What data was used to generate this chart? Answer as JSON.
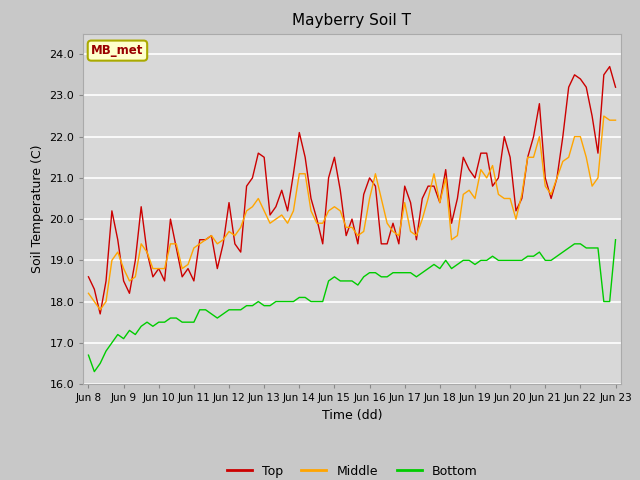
{
  "title": "Mayberry Soil T",
  "xlabel": "Time (dd)",
  "ylabel": "Soil Temperature (C)",
  "ylim": [
    16.0,
    24.5
  ],
  "yticks": [
    16.0,
    17.0,
    18.0,
    19.0,
    20.0,
    21.0,
    22.0,
    23.0,
    24.0
  ],
  "outer_bg": "#c8c8c8",
  "plot_bg_color": "#d8d8d8",
  "line_colors": {
    "Top": "#cc0000",
    "Middle": "#ffa500",
    "Bottom": "#00cc00"
  },
  "legend_label": "MB_met",
  "legend_box_facecolor": "#ffffcc",
  "legend_box_edge": "#aaaa00",
  "legend_text_color": "#990000",
  "x_start_day": 8,
  "x_end_day": 23,
  "x_ticks": [
    8,
    9,
    10,
    11,
    12,
    13,
    14,
    15,
    16,
    17,
    18,
    19,
    20,
    21,
    22,
    23
  ],
  "x_tick_labels": [
    "Jun 8",
    "Jun 9",
    "Jun 10",
    "Jun 11",
    "Jun 12",
    "Jun 13",
    "Jun 14",
    "Jun 15",
    "Jun 16",
    "Jun 17",
    "Jun 18",
    "Jun 19",
    "Jun 20",
    "Jun 21",
    "Jun 22",
    "Jun 23"
  ],
  "top_data": [
    18.6,
    18.3,
    17.7,
    18.5,
    20.2,
    19.5,
    18.5,
    18.2,
    19.0,
    20.3,
    19.2,
    18.6,
    18.8,
    18.5,
    20.0,
    19.3,
    18.6,
    18.8,
    18.5,
    19.5,
    19.5,
    19.6,
    18.8,
    19.4,
    20.4,
    19.4,
    19.2,
    20.8,
    21.0,
    21.6,
    21.5,
    20.1,
    20.3,
    20.7,
    20.2,
    21.1,
    22.1,
    21.5,
    20.5,
    20.0,
    19.4,
    21.0,
    21.5,
    20.7,
    19.6,
    20.0,
    19.4,
    20.6,
    21.0,
    20.8,
    19.4,
    19.4,
    19.9,
    19.4,
    20.8,
    20.4,
    19.5,
    20.5,
    20.8,
    20.8,
    20.4,
    21.2,
    19.9,
    20.5,
    21.5,
    21.2,
    21.0,
    21.6,
    21.6,
    20.8,
    21.0,
    22.0,
    21.5,
    20.2,
    20.5,
    21.5,
    22.0,
    22.8,
    21.0,
    20.5,
    21.0,
    22.0,
    23.2,
    23.5,
    23.4,
    23.2,
    22.5,
    21.6,
    23.5,
    23.7,
    23.2
  ],
  "middle_data": [
    18.2,
    18.0,
    17.8,
    18.0,
    19.0,
    19.2,
    18.8,
    18.5,
    18.6,
    19.4,
    19.2,
    18.8,
    18.8,
    18.8,
    19.4,
    19.4,
    18.8,
    18.9,
    19.3,
    19.4,
    19.5,
    19.6,
    19.4,
    19.5,
    19.7,
    19.6,
    19.8,
    20.2,
    20.3,
    20.5,
    20.2,
    19.9,
    20.0,
    20.1,
    19.9,
    20.2,
    21.1,
    21.1,
    20.2,
    19.9,
    19.9,
    20.2,
    20.3,
    20.2,
    19.8,
    19.8,
    19.6,
    19.7,
    20.5,
    21.1,
    20.5,
    19.9,
    19.7,
    19.6,
    20.4,
    19.7,
    19.6,
    20.0,
    20.5,
    21.1,
    20.4,
    21.0,
    19.5,
    19.6,
    20.6,
    20.7,
    20.5,
    21.2,
    21.0,
    21.3,
    20.6,
    20.5,
    20.5,
    20.0,
    20.6,
    21.5,
    21.5,
    22.0,
    20.8,
    20.6,
    21.0,
    21.4,
    21.5,
    22.0,
    22.0,
    21.5,
    20.8,
    21.0,
    22.5,
    22.4,
    22.4
  ],
  "bottom_data": [
    16.7,
    16.3,
    16.5,
    16.8,
    17.0,
    17.2,
    17.1,
    17.3,
    17.2,
    17.4,
    17.5,
    17.4,
    17.5,
    17.5,
    17.6,
    17.6,
    17.5,
    17.5,
    17.5,
    17.8,
    17.8,
    17.7,
    17.6,
    17.7,
    17.8,
    17.8,
    17.8,
    17.9,
    17.9,
    18.0,
    17.9,
    17.9,
    18.0,
    18.0,
    18.0,
    18.0,
    18.1,
    18.1,
    18.0,
    18.0,
    18.0,
    18.5,
    18.6,
    18.5,
    18.5,
    18.5,
    18.4,
    18.6,
    18.7,
    18.7,
    18.6,
    18.6,
    18.7,
    18.7,
    18.7,
    18.7,
    18.6,
    18.7,
    18.8,
    18.9,
    18.8,
    19.0,
    18.8,
    18.9,
    19.0,
    19.0,
    18.9,
    19.0,
    19.0,
    19.1,
    19.0,
    19.0,
    19.0,
    19.0,
    19.0,
    19.1,
    19.1,
    19.2,
    19.0,
    19.0,
    19.1,
    19.2,
    19.3,
    19.4,
    19.4,
    19.3,
    19.3,
    19.3,
    18.0,
    18.0,
    19.5
  ]
}
